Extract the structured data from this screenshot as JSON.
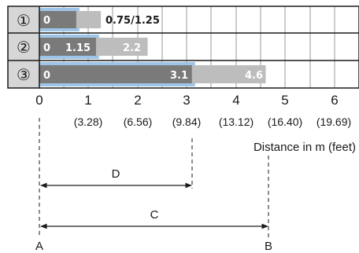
{
  "rows": [
    {
      "marker": "①",
      "start_label": "0",
      "values_label": "0.75/1.25",
      "range_light": 1.25,
      "range_dark": 0.75
    },
    {
      "marker": "②",
      "start_label": "0",
      "mid_label": "1.15",
      "end_label": "2.2",
      "range_light": 2.2,
      "range_dark": 1.15
    },
    {
      "marker": "③",
      "start_label": "0",
      "mid_label": "3.1",
      "end_label": "4.6",
      "range_light": 4.6,
      "range_dark": 3.1
    }
  ],
  "axis": {
    "ticks": [
      "0",
      "1",
      "2",
      "3",
      "4",
      "5",
      "6"
    ],
    "feet": [
      "(3.28)",
      "(6.56)",
      "(9.84)",
      "(13.12)",
      "(16.40)",
      "(19.69)"
    ],
    "label": "Distance in m (feet)"
  },
  "dims": {
    "d_label": "D",
    "c_label": "C",
    "a_label": "A",
    "b_label": "B",
    "d_value": 3.1,
    "c_value": 4.6
  },
  "colors": {
    "dark": "#7a7a7a",
    "light": "#bdbdbd",
    "blue": "#9ec5e8",
    "cell": "#d6d6d6"
  }
}
